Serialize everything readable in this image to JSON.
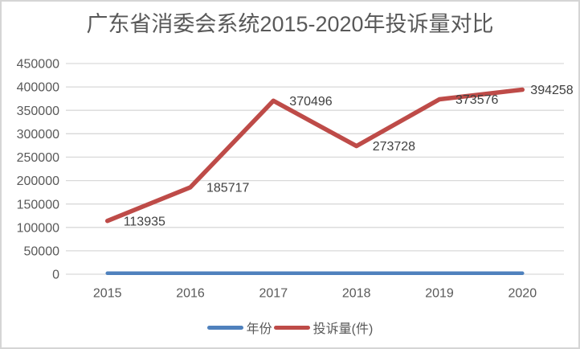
{
  "chart_data": {
    "type": "line",
    "title": "广东省消委会系统2015-2020年投诉量对比",
    "categories": [
      "2015",
      "2016",
      "2017",
      "2018",
      "2019",
      "2020"
    ],
    "series": [
      {
        "id": "year",
        "name": "年份",
        "values": [
          2015,
          2016,
          2017,
          2018,
          2019,
          2020
        ],
        "color": "#4F81BD",
        "data_labels_visible": false
      },
      {
        "id": "complaints",
        "name": "投诉量(件)",
        "values": [
          113935,
          185717,
          370496,
          273728,
          373576,
          394258
        ],
        "color": "#BE4B48",
        "data_labels_visible": true,
        "data_labels": [
          "113935",
          "185717",
          "370496",
          "273728",
          "373576",
          "394258"
        ]
      }
    ],
    "xlabel": "",
    "ylabel": "",
    "ylim": [
      0,
      450000
    ],
    "ytick_step": 50000,
    "ytick_labels": [
      "0",
      "50000",
      "100000",
      "150000",
      "200000",
      "250000",
      "300000",
      "350000",
      "400000",
      "450000"
    ],
    "grid": true,
    "legend_position": "bottom"
  },
  "colors": {
    "title_text": "#595959",
    "axis_text": "#595959",
    "data_label_text": "#404040",
    "gridline": "#D9D9D9",
    "background": "#FFFFFF",
    "border": "#D5D5D5"
  }
}
